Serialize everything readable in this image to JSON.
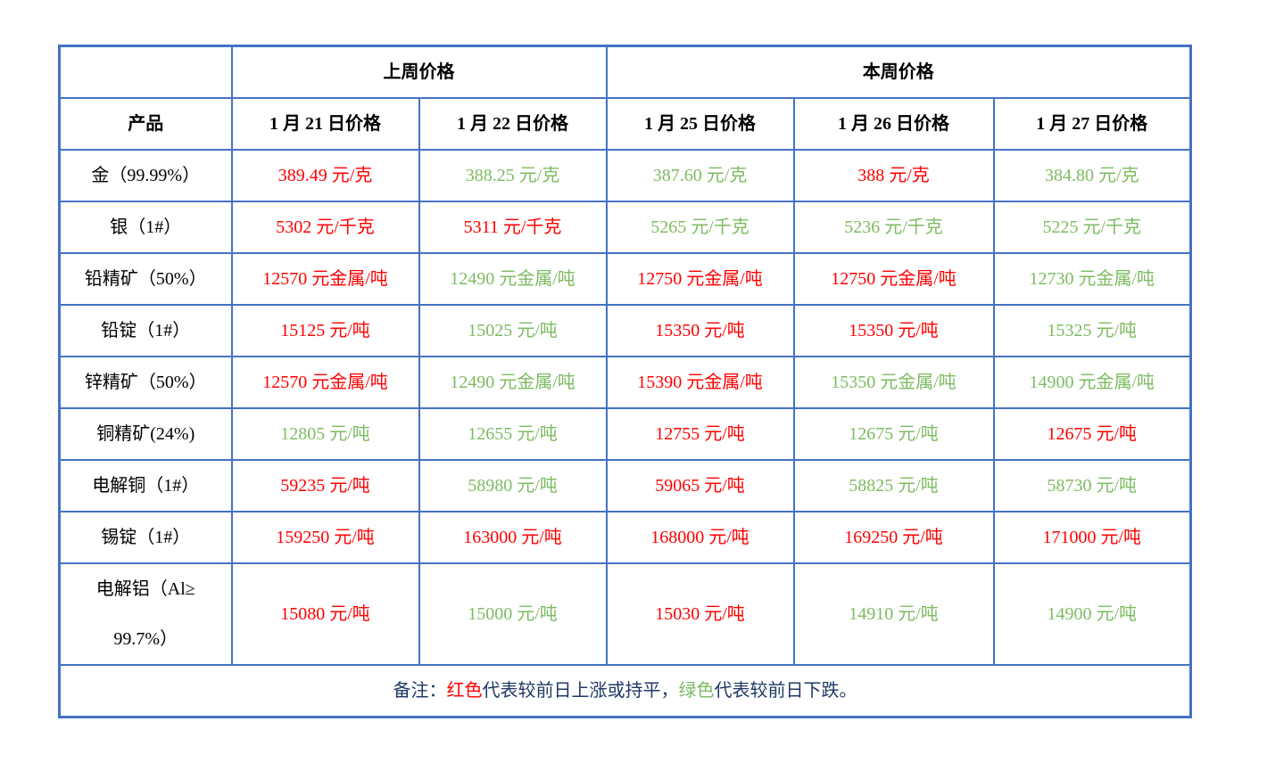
{
  "colors": {
    "red": "#FF0000",
    "green": "#7DBB61",
    "navy": "#1F3864",
    "border": "#4472C4",
    "header_text": "#000000"
  },
  "header": {
    "product_label": "产品",
    "last_week_label": "上周价格",
    "this_week_label": "本周价格",
    "date_columns": [
      "1 月 21 日价格",
      "1 月 22 日价格",
      "1 月 25 日价格",
      "1 月 26 日价格",
      "1 月 27 日价格"
    ]
  },
  "chart_data": {
    "type": "table",
    "title": "上周价格 / 本周价格",
    "categories": [
      "1 月 21 日价格",
      "1 月 22 日价格",
      "1 月 25 日价格",
      "1 月 26 日价格",
      "1 月 27 日价格"
    ],
    "series": [
      {
        "name": "金（99.99%）",
        "values": [
          389.49,
          388.25,
          387.6,
          388,
          384.8
        ],
        "unit": "元/克"
      },
      {
        "name": "银（1#）",
        "values": [
          5302,
          5311,
          5265,
          5236,
          5225
        ],
        "unit": "元/千克"
      },
      {
        "name": "铅精矿（50%）",
        "values": [
          12570,
          12490,
          12750,
          12750,
          12730
        ],
        "unit": "元金属/吨"
      },
      {
        "name": "铅锭（1#）",
        "values": [
          15125,
          15025,
          15350,
          15350,
          15325
        ],
        "unit": "元/吨"
      },
      {
        "name": "锌精矿（50%）",
        "values": [
          12570,
          12490,
          15390,
          15350,
          14900
        ],
        "unit": "元金属/吨"
      },
      {
        "name": "铜精矿(24%)",
        "values": [
          12805,
          12655,
          12755,
          12675,
          12675
        ],
        "unit": "元/吨"
      },
      {
        "name": "电解铜（1#）",
        "values": [
          59235,
          58980,
          59065,
          58825,
          58730
        ],
        "unit": "元/吨"
      },
      {
        "name": "锡锭（1#）",
        "values": [
          159250,
          163000,
          168000,
          169250,
          171000
        ],
        "unit": "元/吨"
      },
      {
        "name": "电解铝（Al≥99.7%）",
        "values": [
          15080,
          15000,
          15030,
          14910,
          14900
        ],
        "unit": "元/吨"
      }
    ]
  },
  "rows": [
    {
      "product": "金（99.99%）",
      "cells": [
        {
          "text": "389.49 元/克",
          "trend": "red"
        },
        {
          "text": "388.25 元/克",
          "trend": "green"
        },
        {
          "text": "387.60 元/克",
          "trend": "green"
        },
        {
          "text": "388 元/克",
          "trend": "red"
        },
        {
          "text": "384.80 元/克",
          "trend": "green"
        }
      ]
    },
    {
      "product": "银（1#）",
      "cells": [
        {
          "text": "5302 元/千克",
          "trend": "red"
        },
        {
          "text": "5311 元/千克",
          "trend": "red"
        },
        {
          "text": "5265 元/千克",
          "trend": "green"
        },
        {
          "text": "5236 元/千克",
          "trend": "green"
        },
        {
          "text": "5225 元/千克",
          "trend": "green"
        }
      ]
    },
    {
      "product": "铅精矿（50%）",
      "cells": [
        {
          "text": "12570 元金属/吨",
          "trend": "red"
        },
        {
          "text": "12490 元金属/吨",
          "trend": "green"
        },
        {
          "text": "12750 元金属/吨",
          "trend": "red"
        },
        {
          "text": "12750 元金属/吨",
          "trend": "red"
        },
        {
          "text": "12730 元金属/吨",
          "trend": "green"
        }
      ]
    },
    {
      "product": "铅锭（1#）",
      "cells": [
        {
          "text": "15125 元/吨",
          "trend": "red"
        },
        {
          "text": "15025 元/吨",
          "trend": "green"
        },
        {
          "text": "15350 元/吨",
          "trend": "red"
        },
        {
          "text": "15350 元/吨",
          "trend": "red"
        },
        {
          "text": "15325 元/吨",
          "trend": "green"
        }
      ]
    },
    {
      "product": "锌精矿（50%）",
      "cells": [
        {
          "text": "12570 元金属/吨",
          "trend": "red"
        },
        {
          "text": "12490 元金属/吨",
          "trend": "green"
        },
        {
          "text": "15390 元金属/吨",
          "trend": "red"
        },
        {
          "text": "15350 元金属/吨",
          "trend": "green"
        },
        {
          "text": "14900 元金属/吨",
          "trend": "green"
        }
      ]
    },
    {
      "product": "铜精矿(24%)",
      "cells": [
        {
          "text": "12805 元/吨",
          "trend": "green"
        },
        {
          "text": "12655 元/吨",
          "trend": "green"
        },
        {
          "text": "12755 元/吨",
          "trend": "red"
        },
        {
          "text": "12675 元/吨",
          "trend": "green"
        },
        {
          "text": "12675 元/吨",
          "trend": "red"
        }
      ]
    },
    {
      "product": "电解铜（1#）",
      "cells": [
        {
          "text": "59235 元/吨",
          "trend": "red"
        },
        {
          "text": "58980 元/吨",
          "trend": "green"
        },
        {
          "text": "59065 元/吨",
          "trend": "red"
        },
        {
          "text": "58825 元/吨",
          "trend": "green"
        },
        {
          "text": "58730 元/吨",
          "trend": "green"
        }
      ]
    },
    {
      "product": "锡锭（1#）",
      "cells": [
        {
          "text": "159250 元/吨",
          "trend": "red"
        },
        {
          "text": "163000 元/吨",
          "trend": "red"
        },
        {
          "text": "168000 元/吨",
          "trend": "red"
        },
        {
          "text": "169250 元/吨",
          "trend": "red"
        },
        {
          "text": "171000 元/吨",
          "trend": "red"
        }
      ]
    },
    {
      "product": "电解铝（Al≥\n99.7%）",
      "cells": [
        {
          "text": "15080 元/吨",
          "trend": "red"
        },
        {
          "text": "15000 元/吨",
          "trend": "green"
        },
        {
          "text": "15030 元/吨",
          "trend": "red"
        },
        {
          "text": "14910 元/吨",
          "trend": "green"
        },
        {
          "text": "14900 元/吨",
          "trend": "green"
        }
      ]
    }
  ],
  "footnote": {
    "parts": [
      {
        "text": "备注：",
        "color": "navy"
      },
      {
        "text": "红色",
        "color": "red"
      },
      {
        "text": "代表较前日上涨或持平，",
        "color": "navy"
      },
      {
        "text": "绿色",
        "color": "green"
      },
      {
        "text": "代表较前日下跌。",
        "color": "navy"
      }
    ]
  }
}
